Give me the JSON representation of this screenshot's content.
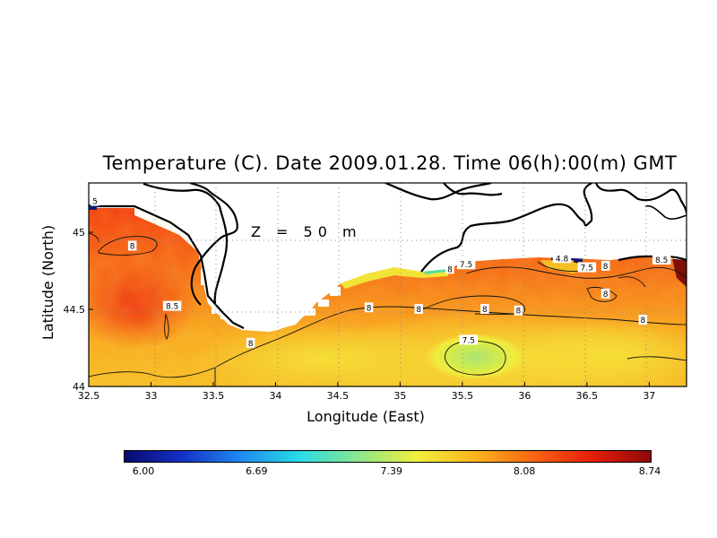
{
  "title": "Temperature (C). Date 2009.01.28. Time 06(h):00(m) GMT",
  "depth_label": "Z  =  50  m",
  "axes": {
    "xlabel": "Longitude (East)",
    "ylabel": "Latitude (North)",
    "x_ticks": [
      "32.5",
      "33",
      "33.5",
      "34",
      "34.5",
      "35",
      "35.5",
      "36",
      "36.5",
      "37"
    ],
    "y_ticks": [
      "44",
      "44.5",
      "45"
    ],
    "xlim": [
      32.5,
      37.3
    ],
    "ylim": [
      44.0,
      45.32
    ]
  },
  "contour_labels": [
    {
      "text": "8",
      "lon": 32.85,
      "lat": 44.91
    },
    {
      "text": "8.5",
      "lon": 33.17,
      "lat": 44.52
    },
    {
      "text": "8",
      "lon": 33.8,
      "lat": 44.28
    },
    {
      "text": "8",
      "lon": 34.75,
      "lat": 44.51
    },
    {
      "text": "8",
      "lon": 35.15,
      "lat": 44.5
    },
    {
      "text": "8",
      "lon": 35.4,
      "lat": 44.76
    },
    {
      "text": "7.5",
      "lon": 35.53,
      "lat": 44.79
    },
    {
      "text": "8",
      "lon": 35.68,
      "lat": 44.5
    },
    {
      "text": "8",
      "lon": 35.95,
      "lat": 44.49
    },
    {
      "text": "7.5",
      "lon": 35.55,
      "lat": 44.3
    },
    {
      "text": "4.8",
      "lon": 36.3,
      "lat": 44.83
    },
    {
      "text": "7.5",
      "lon": 36.5,
      "lat": 44.77
    },
    {
      "text": "8",
      "lon": 36.65,
      "lat": 44.78
    },
    {
      "text": "8",
      "lon": 36.65,
      "lat": 44.6
    },
    {
      "text": "8",
      "lon": 36.95,
      "lat": 44.43
    },
    {
      "text": "8.5",
      "lon": 37.1,
      "lat": 44.82
    },
    {
      "text": "5",
      "lon": 32.55,
      "lat": 45.2
    }
  ],
  "colorbar": {
    "min": 6.0,
    "max": 8.74,
    "labels": [
      "6.00",
      "6.69",
      "7.39",
      "8.08",
      "8.74"
    ],
    "colors": [
      "#0a0a6e",
      "#1432c8",
      "#1e8cf0",
      "#28dce6",
      "#8ce68c",
      "#f0f03c",
      "#fab41e",
      "#fa6414",
      "#e61e0a",
      "#8c0a0a"
    ]
  }
}
